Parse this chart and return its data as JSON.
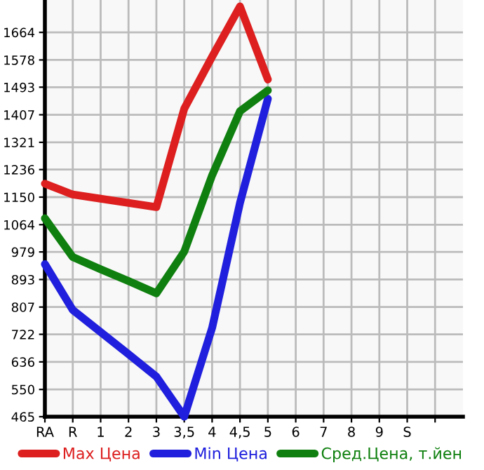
{
  "chart_data": {
    "type": "line",
    "categories": [
      "RA",
      "R",
      "1",
      "2",
      "3",
      "3,5",
      "4",
      "4,5",
      "5",
      "6",
      "7",
      "8",
      "9",
      "S",
      null
    ],
    "series": [
      {
        "name": "Max Цена",
        "color": "#dd1f1f",
        "values": [
          1192,
          1158,
          1145,
          1132,
          1119,
          1426,
          1588,
          1745,
          1517,
          null,
          null,
          null,
          null,
          null,
          null
        ]
      },
      {
        "name": "Min Цена",
        "color": "#1f1fdd",
        "values": [
          941,
          798,
          729,
          660,
          590,
          465,
          742,
          1132,
          1457,
          null,
          null,
          null,
          null,
          null,
          null
        ]
      },
      {
        "name": "Сред.Цена, т.йен",
        "color": "#0f800f",
        "values": [
          1084,
          963,
          925,
          888,
          850,
          980,
          1218,
          1418,
          1483,
          null,
          null,
          null,
          null,
          null,
          null
        ]
      }
    ],
    "ylim": [
      465,
      1765
    ],
    "yticks": [
      465,
      550,
      636,
      722,
      807,
      893,
      979,
      1064,
      1150,
      1236,
      1321,
      1407,
      1493,
      1578,
      1664
    ],
    "grid": true,
    "legend": "bottom",
    "marker": "none",
    "line_style": "solid"
  }
}
